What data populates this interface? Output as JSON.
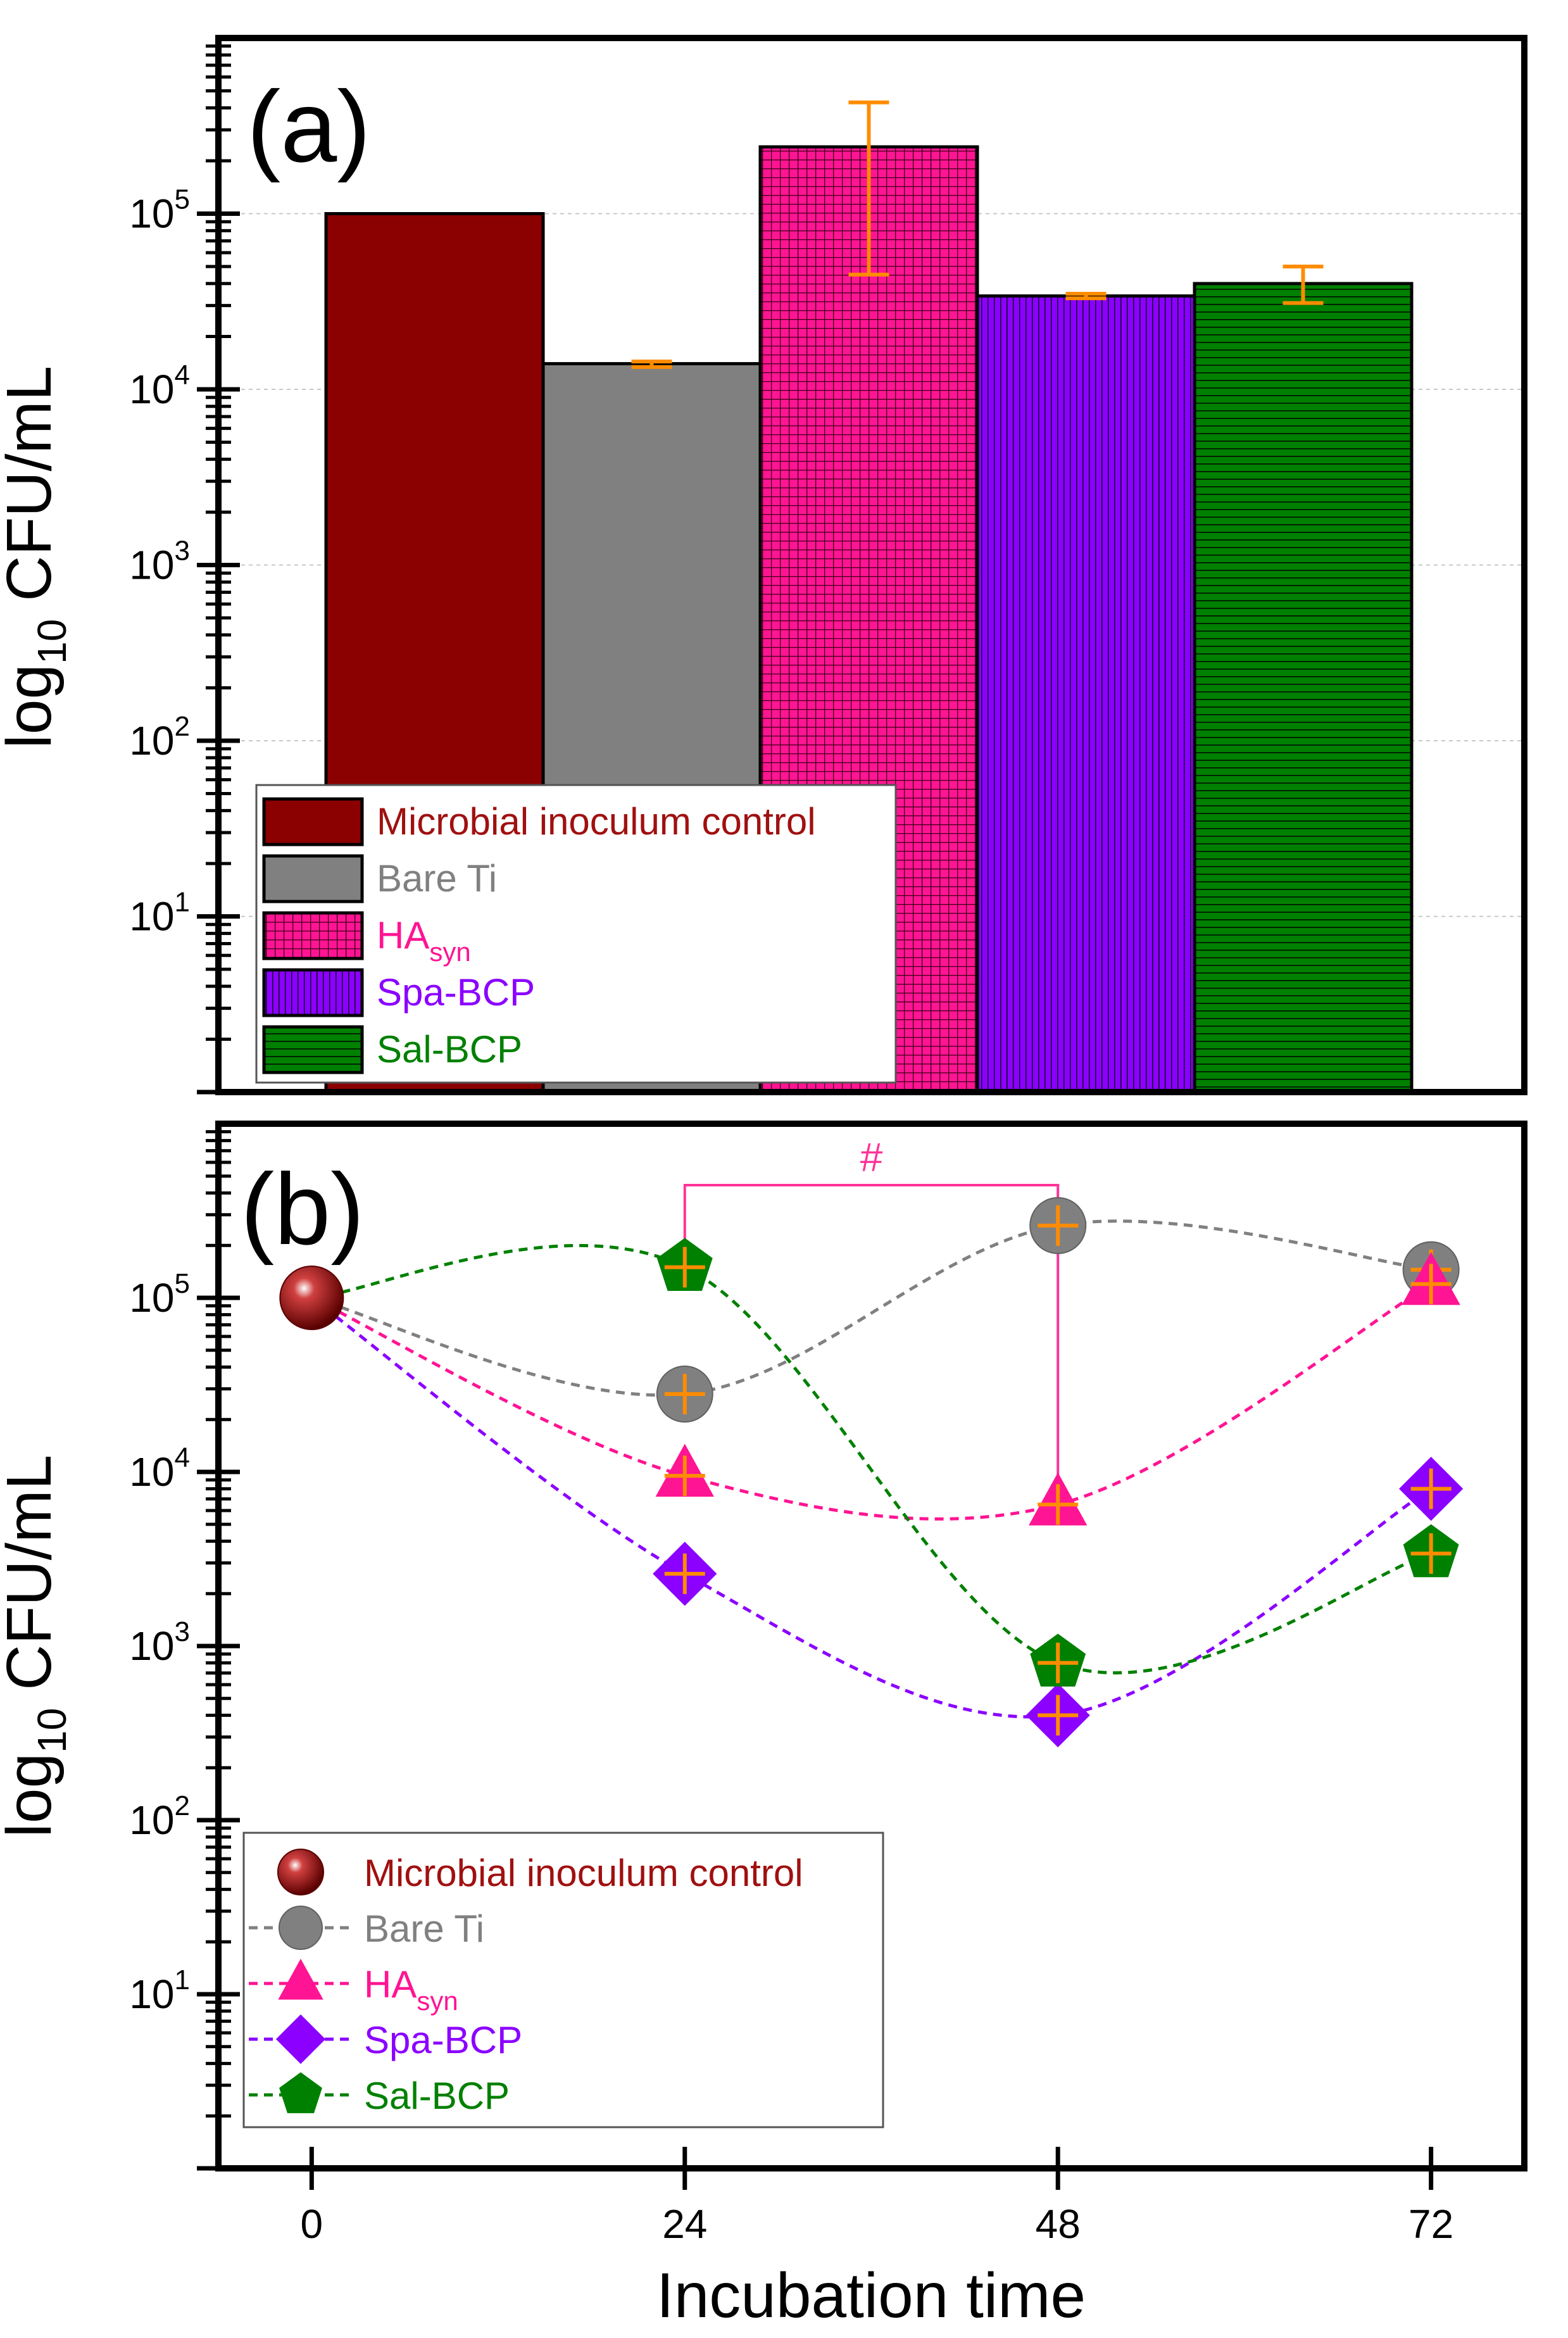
{
  "chart_data": [
    {
      "type": "bar",
      "panel_label": "(a)",
      "ylabel": {
        "main": "log",
        "sub": "10",
        "rest": " CFU/mL"
      },
      "yscale": "log",
      "ylim": [
        1,
        1000000
      ],
      "ytick_values": [
        10,
        100,
        1000,
        10000,
        100000
      ],
      "ytick_labels": [
        {
          "base": "10",
          "exp": "1"
        },
        {
          "base": "10",
          "exp": "2"
        },
        {
          "base": "10",
          "exp": "3"
        },
        {
          "base": "10",
          "exp": "4"
        },
        {
          "base": "10",
          "exp": "5"
        }
      ],
      "gridlines": true,
      "legend_position": "bottom-left",
      "bars": [
        {
          "name": "Microbial inoculum control",
          "sub": "",
          "value": 100000,
          "error": null,
          "color": "#8b0000",
          "text_color": "#a01010",
          "pattern": "solid"
        },
        {
          "name": "Bare Ti",
          "sub": "",
          "value": 14000,
          "error": [
            13400,
            14400
          ],
          "color": "#808080",
          "text_color": "#808080",
          "pattern": "solid"
        },
        {
          "name": "HA",
          "sub": "syn",
          "value": 240000,
          "error": [
            45000,
            430000
          ],
          "color": "#ff1493",
          "text_color": "#ff1493",
          "pattern": "grid"
        },
        {
          "name": "Spa-BCP",
          "sub": "",
          "value": 34000,
          "error": [
            33000,
            35000
          ],
          "color": "#8b00ff",
          "text_color": "#8b00ff",
          "pattern": "vertical"
        },
        {
          "name": "Sal-BCP",
          "sub": "",
          "value": 40000,
          "error": [
            31000,
            50000
          ],
          "color": "#008000",
          "text_color": "#008000",
          "pattern": "horizontal"
        }
      ],
      "error_color": "#ff8c00"
    },
    {
      "type": "line",
      "panel_label": "(b)",
      "xlabel": "Incubation time",
      "ylabel": {
        "main": "log",
        "sub": "10",
        "rest": " CFU/mL"
      },
      "yscale": "log",
      "ylim": [
        1,
        1000000
      ],
      "xlim": [
        -6,
        78
      ],
      "x_ticks": [
        0,
        24,
        48,
        72
      ],
      "x_tick_labels": [
        "0",
        "24",
        "48",
        "72"
      ],
      "ytick_values": [
        10,
        100,
        1000,
        10000,
        100000
      ],
      "ytick_labels": [
        {
          "base": "10",
          "exp": "1"
        },
        {
          "base": "10",
          "exp": "2"
        },
        {
          "base": "10",
          "exp": "3"
        },
        {
          "base": "10",
          "exp": "4"
        },
        {
          "base": "10",
          "exp": "5"
        }
      ],
      "legend_position": "bottom-left",
      "annotation": {
        "text": "#",
        "x1": 24,
        "x2": 48,
        "color": "#ff3399"
      },
      "error_color": "#ff8c00",
      "series": [
        {
          "name": "Microbial inoculum control",
          "sub": "",
          "marker": "sphere",
          "color": "#8b0000",
          "text_color": "#a01010",
          "x": [
            0
          ],
          "y": [
            100000
          ]
        },
        {
          "name": "Bare Ti",
          "sub": "",
          "marker": "circle",
          "color": "#808080",
          "text_color": "#808080",
          "x": [
            0,
            24,
            48,
            72
          ],
          "y": [
            100000,
            28000,
            260000,
            145000
          ]
        },
        {
          "name": "HA",
          "sub": "syn",
          "marker": "triangle",
          "color": "#ff1493",
          "text_color": "#ff1493",
          "x": [
            0,
            24,
            48,
            72
          ],
          "y": [
            100000,
            9500,
            6500,
            120000
          ]
        },
        {
          "name": "Spa-BCP",
          "sub": "",
          "marker": "diamond",
          "color": "#8b00ff",
          "text_color": "#8b00ff",
          "x": [
            0,
            24,
            48,
            72
          ],
          "y": [
            100000,
            2600,
            400,
            8000
          ]
        },
        {
          "name": "Sal-BCP",
          "sub": "",
          "marker": "pentagon",
          "color": "#008000",
          "text_color": "#008000",
          "x": [
            0,
            24,
            48,
            72
          ],
          "y": [
            100000,
            150000,
            800,
            3400
          ]
        }
      ]
    }
  ]
}
